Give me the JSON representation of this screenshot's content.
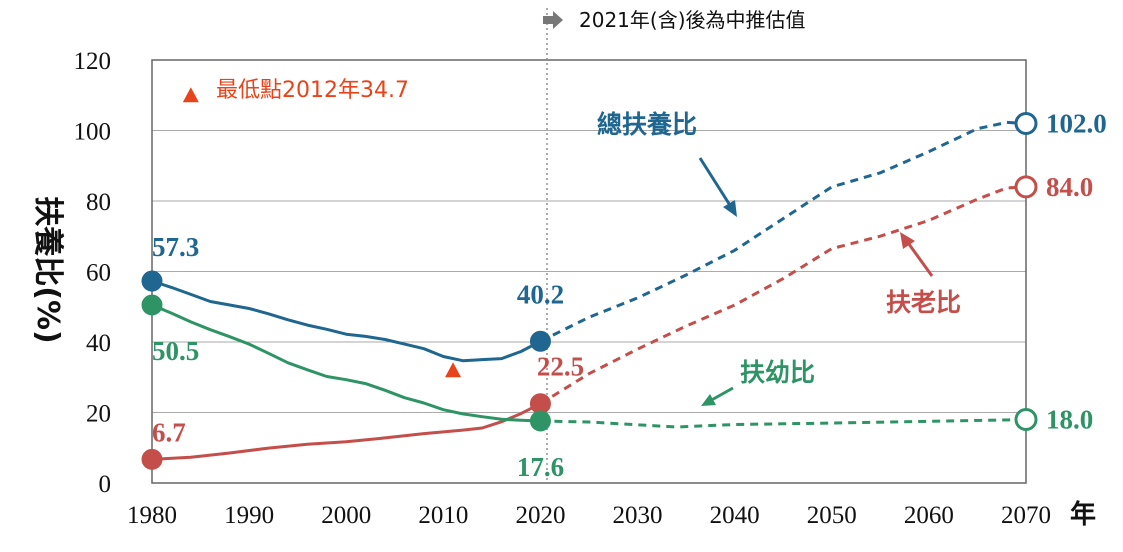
{
  "chart_data": {
    "type": "line",
    "ylabel": "扶養比(%)",
    "x_unit": "年",
    "ylim": [
      0,
      120
    ],
    "yticks": [
      "0",
      "20",
      "40",
      "60",
      "80",
      "100",
      "120"
    ],
    "xlim": [
      1980,
      2070
    ],
    "xticks": [
      "1980",
      "1990",
      "2000",
      "2010",
      "2020",
      "2030",
      "2040",
      "2050",
      "2060",
      "2070"
    ],
    "grid": true,
    "projection_note": "2021年(含)後為中推估值",
    "projection_start": 2020.5,
    "min_note": "最低點2012年34.7",
    "colors": {
      "total": "#1f6691",
      "elderly": "#c44e4a",
      "youth": "#2e9466",
      "min_marker": "#e8431a"
    },
    "series": [
      {
        "key": "total",
        "name": "總扶養比",
        "actual": [
          [
            1980,
            57.3
          ],
          [
            1982,
            55.5
          ],
          [
            1984,
            53.5
          ],
          [
            1986,
            51.5
          ],
          [
            1988,
            50.5
          ],
          [
            1990,
            49.5
          ],
          [
            1992,
            48
          ],
          [
            1994,
            46.3
          ],
          [
            1996,
            44.8
          ],
          [
            1998,
            43.6
          ],
          [
            2000,
            42.2
          ],
          [
            2002,
            41.6
          ],
          [
            2004,
            40.7
          ],
          [
            2006,
            39.4
          ],
          [
            2008,
            38.1
          ],
          [
            2010,
            35.9
          ],
          [
            2012,
            34.7
          ],
          [
            2014,
            35.0
          ],
          [
            2016,
            35.3
          ],
          [
            2018,
            37.3
          ],
          [
            2020,
            40.2
          ]
        ],
        "projected": [
          [
            2020,
            40.2
          ],
          [
            2025,
            47
          ],
          [
            2030,
            52.5
          ],
          [
            2035,
            59
          ],
          [
            2040,
            66
          ],
          [
            2045,
            75
          ],
          [
            2050,
            84
          ],
          [
            2055,
            88
          ],
          [
            2060,
            94
          ],
          [
            2065,
            100.5
          ],
          [
            2068,
            102.3
          ],
          [
            2070,
            102.0
          ]
        ],
        "labels": [
          {
            "x": 1980,
            "y": 57.3,
            "text": "57.3"
          },
          {
            "x": 2020,
            "y": 40.2,
            "text": "40.2"
          },
          {
            "x": 2070,
            "y": 102.0,
            "text": "102.0"
          }
        ]
      },
      {
        "key": "elderly",
        "name": "扶老比",
        "actual": [
          [
            1980,
            6.7
          ],
          [
            1984,
            7.3
          ],
          [
            1988,
            8.5
          ],
          [
            1992,
            9.9
          ],
          [
            1996,
            11
          ],
          [
            2000,
            11.7
          ],
          [
            2004,
            12.8
          ],
          [
            2008,
            14
          ],
          [
            2012,
            15
          ],
          [
            2014,
            15.6
          ],
          [
            2016,
            17.4
          ],
          [
            2018,
            19.7
          ],
          [
            2020,
            22.5
          ]
        ],
        "projected": [
          [
            2020,
            22.5
          ],
          [
            2025,
            31
          ],
          [
            2030,
            38
          ],
          [
            2035,
            44.5
          ],
          [
            2040,
            50.5
          ],
          [
            2045,
            58
          ],
          [
            2050,
            66.5
          ],
          [
            2055,
            70
          ],
          [
            2060,
            74.5
          ],
          [
            2065,
            80.5
          ],
          [
            2068,
            83.7
          ],
          [
            2070,
            84.0
          ]
        ],
        "labels": [
          {
            "x": 1980,
            "y": 6.7,
            "text": "6.7"
          },
          {
            "x": 2020,
            "y": 22.5,
            "text": "22.5"
          },
          {
            "x": 2070,
            "y": 84.0,
            "text": "84.0"
          }
        ]
      },
      {
        "key": "youth",
        "name": "扶幼比",
        "actual": [
          [
            1980,
            50.5
          ],
          [
            1982,
            48.2
          ],
          [
            1984,
            45.7
          ],
          [
            1986,
            43.5
          ],
          [
            1988,
            41.5
          ],
          [
            1990,
            39.4
          ],
          [
            1992,
            36.8
          ],
          [
            1994,
            34.1
          ],
          [
            1996,
            32.1
          ],
          [
            1998,
            30.2
          ],
          [
            2000,
            29.3
          ],
          [
            2002,
            28.2
          ],
          [
            2004,
            26.3
          ],
          [
            2006,
            24.2
          ],
          [
            2008,
            22.7
          ],
          [
            2010,
            20.8
          ],
          [
            2012,
            19.6
          ],
          [
            2014,
            18.8
          ],
          [
            2016,
            18.1
          ],
          [
            2018,
            17.8
          ],
          [
            2020,
            17.6
          ]
        ],
        "projected": [
          [
            2020,
            17.6
          ],
          [
            2025,
            17.3
          ],
          [
            2030,
            16.5
          ],
          [
            2034,
            15.9
          ],
          [
            2040,
            16.6
          ],
          [
            2045,
            16.8
          ],
          [
            2050,
            17
          ],
          [
            2060,
            17.5
          ],
          [
            2070,
            18.0
          ]
        ],
        "labels": [
          {
            "x": 1980,
            "y": 50.5,
            "text": "50.5"
          },
          {
            "x": 2020,
            "y": 17.6,
            "text": "17.6"
          },
          {
            "x": 2070,
            "y": 18.0,
            "text": "18.0"
          }
        ]
      }
    ],
    "min_markers": [
      [
        1984,
        110
      ],
      [
        2011,
        32
      ]
    ]
  }
}
